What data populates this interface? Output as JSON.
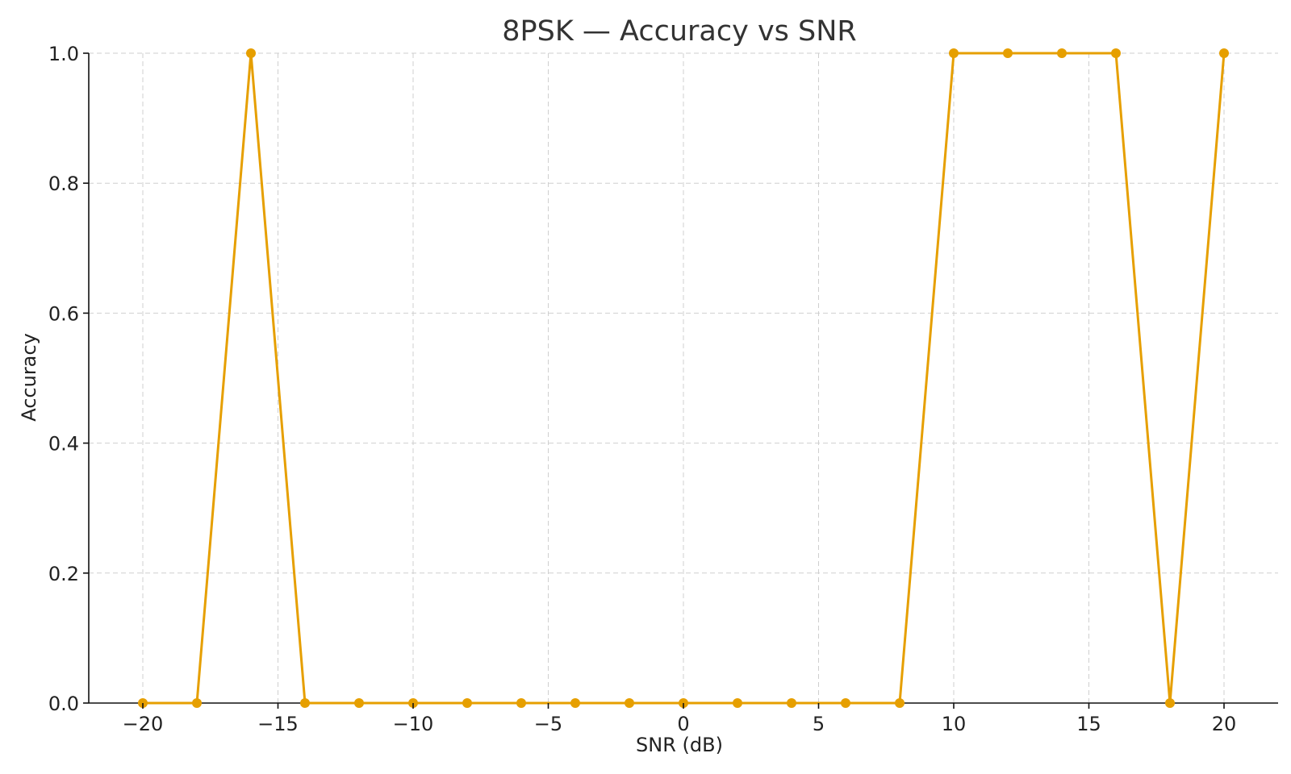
{
  "chart_data": {
    "type": "line",
    "title": "8PSK — Accuracy vs SNR",
    "xlabel": "SNR (dB)",
    "ylabel": "Accuracy",
    "xlim": [
      -22,
      22
    ],
    "ylim": [
      0.0,
      1.0
    ],
    "x_ticks": [
      -20,
      -15,
      -10,
      -5,
      0,
      5,
      10,
      15,
      20
    ],
    "x_tick_labels": [
      "−20",
      "−15",
      "−10",
      "−5",
      "0",
      "5",
      "10",
      "15",
      "20"
    ],
    "y_ticks": [
      0.0,
      0.2,
      0.4,
      0.6,
      0.8,
      1.0
    ],
    "y_tick_labels": [
      "0.0",
      "0.2",
      "0.4",
      "0.6",
      "0.8",
      "1.0"
    ],
    "grid": true,
    "series": [
      {
        "color": "#E69F00",
        "x": [
          -20,
          -18,
          -16,
          -14,
          -12,
          -10,
          -8,
          -6,
          -4,
          -2,
          0,
          2,
          4,
          6,
          8,
          10,
          12,
          14,
          16,
          18,
          20
        ],
        "values": [
          0,
          0,
          1,
          0,
          0,
          0,
          0,
          0,
          0,
          0,
          0,
          0,
          0,
          0,
          0,
          1,
          1,
          1,
          1,
          0,
          1
        ]
      }
    ]
  }
}
